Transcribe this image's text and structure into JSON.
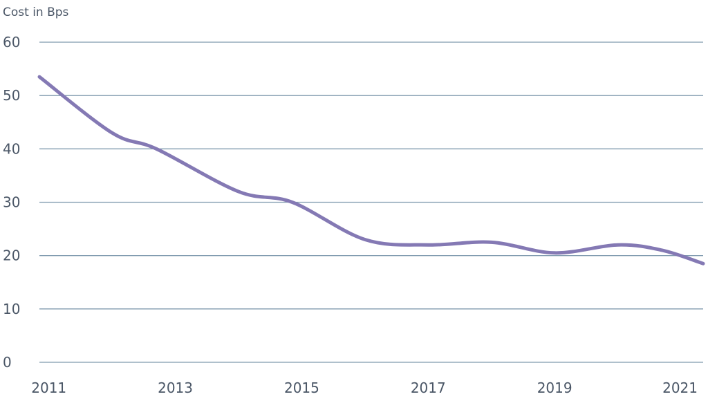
{
  "chart_data": {
    "type": "line",
    "title": "",
    "ylabel": "Cost in Bps",
    "xlabel": "",
    "ylim": [
      0,
      60
    ],
    "yticks": [
      "0",
      "10",
      "20",
      "30",
      "40",
      "50",
      "60"
    ],
    "xticks": [
      "2011",
      "2013",
      "2015",
      "2017",
      "2019",
      "2021"
    ],
    "xlim": [
      2010.85,
      2021.35
    ],
    "grid": true,
    "legend": "none",
    "series": [
      {
        "name": "Cost in Bps",
        "color": "#8479b4",
        "x": [
          2010.85,
          2012,
          2012.7,
          2014,
          2014.85,
          2016,
          2017,
          2018,
          2019,
          2020,
          2020.7,
          2021.35
        ],
        "values": [
          53.5,
          43,
          40,
          32,
          30,
          23,
          22,
          22.5,
          20.5,
          22,
          21,
          18.5
        ]
      }
    ]
  }
}
